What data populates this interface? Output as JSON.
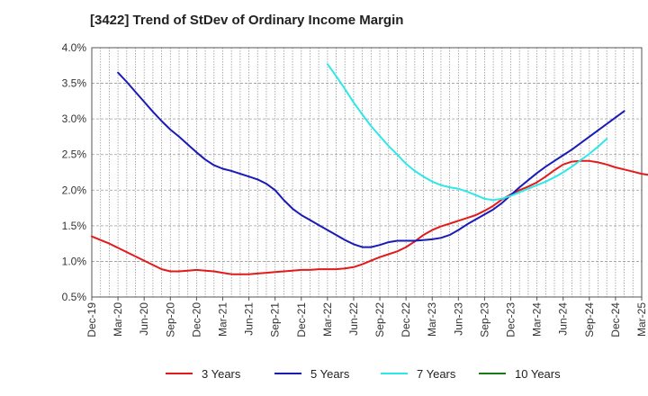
{
  "chart_data": {
    "type": "line",
    "title": "[3422]  Trend of StDev of Ordinary Income Margin",
    "xlabel": "",
    "ylabel": "",
    "x_ticks": [
      "Dec-19",
      "Mar-20",
      "Jun-20",
      "Sep-20",
      "Dec-20",
      "Mar-21",
      "Jun-21",
      "Sep-21",
      "Dec-21",
      "Mar-22",
      "Jun-22",
      "Sep-22",
      "Dec-22",
      "Mar-23",
      "Jun-23",
      "Sep-23",
      "Dec-23",
      "Mar-24",
      "Jun-24",
      "Sep-24",
      "Dec-24",
      "Mar-25"
    ],
    "y_ticks": [
      "0.5%",
      "1.0%",
      "1.5%",
      "2.0%",
      "2.5%",
      "3.0%",
      "3.5%",
      "4.0%"
    ],
    "ylim": [
      0.5,
      4.0
    ],
    "grid": true,
    "legend_position": "bottom",
    "series": [
      {
        "name": "3 Years",
        "color": "#e31a1c",
        "points": [
          [
            "Dec-19",
            1.35
          ],
          [
            "Jan-20",
            1.3
          ],
          [
            "Feb-20",
            1.25
          ],
          [
            "Mar-20",
            1.19
          ],
          [
            "Apr-20",
            1.13
          ],
          [
            "May-20",
            1.07
          ],
          [
            "Jun-20",
            1.01
          ],
          [
            "Jul-20",
            0.95
          ],
          [
            "Aug-20",
            0.89
          ],
          [
            "Sep-20",
            0.86
          ],
          [
            "Oct-20",
            0.86
          ],
          [
            "Nov-20",
            0.87
          ],
          [
            "Dec-20",
            0.88
          ],
          [
            "Jan-21",
            0.87
          ],
          [
            "Feb-21",
            0.86
          ],
          [
            "Mar-21",
            0.84
          ],
          [
            "Apr-21",
            0.82
          ],
          [
            "May-21",
            0.82
          ],
          [
            "Jun-21",
            0.82
          ],
          [
            "Jul-21",
            0.83
          ],
          [
            "Aug-21",
            0.84
          ],
          [
            "Sep-21",
            0.85
          ],
          [
            "Oct-21",
            0.86
          ],
          [
            "Nov-21",
            0.87
          ],
          [
            "Dec-21",
            0.88
          ],
          [
            "Jan-22",
            0.88
          ],
          [
            "Feb-22",
            0.89
          ],
          [
            "Mar-22",
            0.89
          ],
          [
            "Apr-22",
            0.89
          ],
          [
            "May-22",
            0.9
          ],
          [
            "Jun-22",
            0.92
          ],
          [
            "Jul-22",
            0.96
          ],
          [
            "Aug-22",
            1.01
          ],
          [
            "Sep-22",
            1.06
          ],
          [
            "Oct-22",
            1.1
          ],
          [
            "Nov-22",
            1.14
          ],
          [
            "Dec-22",
            1.2
          ],
          [
            "Jan-23",
            1.28
          ],
          [
            "Feb-23",
            1.37
          ],
          [
            "Mar-23",
            1.44
          ],
          [
            "Apr-23",
            1.49
          ],
          [
            "May-23",
            1.53
          ],
          [
            "Jun-23",
            1.57
          ],
          [
            "Jul-23",
            1.61
          ],
          [
            "Aug-23",
            1.65
          ],
          [
            "Sep-23",
            1.71
          ],
          [
            "Oct-23",
            1.78
          ],
          [
            "Nov-23",
            1.87
          ],
          [
            "Dec-23",
            1.94
          ],
          [
            "Jan-24",
            2.0
          ],
          [
            "Feb-24",
            2.05
          ],
          [
            "Mar-24",
            2.11
          ],
          [
            "Apr-24",
            2.19
          ],
          [
            "May-24",
            2.28
          ],
          [
            "Jun-24",
            2.36
          ],
          [
            "Jul-24",
            2.4
          ],
          [
            "Aug-24",
            2.41
          ],
          [
            "Sep-24",
            2.41
          ],
          [
            "Oct-24",
            2.39
          ],
          [
            "Nov-24",
            2.36
          ],
          [
            "Dec-24",
            2.32
          ],
          [
            "Jan-25",
            2.29
          ],
          [
            "Feb-25",
            2.26
          ],
          [
            "Mar-25",
            2.23
          ],
          [
            "Apr-25",
            2.21
          ],
          [
            "May-25",
            2.2
          ],
          [
            "Jun-25",
            2.2
          ]
        ]
      },
      {
        "name": "5 Years",
        "color": "#1a1ab8",
        "points": [
          [
            "Mar-20",
            3.65
          ],
          [
            "Apr-20",
            3.52
          ],
          [
            "May-20",
            3.38
          ],
          [
            "Jun-20",
            3.24
          ],
          [
            "Jul-20",
            3.1
          ],
          [
            "Aug-20",
            2.97
          ],
          [
            "Sep-20",
            2.85
          ],
          [
            "Oct-20",
            2.75
          ],
          [
            "Nov-20",
            2.64
          ],
          [
            "Dec-20",
            2.53
          ],
          [
            "Jan-21",
            2.43
          ],
          [
            "Feb-21",
            2.35
          ],
          [
            "Mar-21",
            2.3
          ],
          [
            "Apr-21",
            2.27
          ],
          [
            "May-21",
            2.23
          ],
          [
            "Jun-21",
            2.19
          ],
          [
            "Jul-21",
            2.15
          ],
          [
            "Aug-21",
            2.09
          ],
          [
            "Sep-21",
            2.0
          ],
          [
            "Oct-21",
            1.86
          ],
          [
            "Nov-21",
            1.74
          ],
          [
            "Dec-21",
            1.65
          ],
          [
            "Jan-22",
            1.58
          ],
          [
            "Feb-22",
            1.51
          ],
          [
            "Mar-22",
            1.44
          ],
          [
            "Apr-22",
            1.37
          ],
          [
            "May-22",
            1.3
          ],
          [
            "Jun-22",
            1.24
          ],
          [
            "Jul-22",
            1.2
          ],
          [
            "Aug-22",
            1.2
          ],
          [
            "Sep-22",
            1.23
          ],
          [
            "Oct-22",
            1.27
          ],
          [
            "Nov-22",
            1.29
          ],
          [
            "Dec-22",
            1.29
          ],
          [
            "Jan-23",
            1.29
          ],
          [
            "Feb-23",
            1.3
          ],
          [
            "Mar-23",
            1.31
          ],
          [
            "Apr-23",
            1.33
          ],
          [
            "May-23",
            1.37
          ],
          [
            "Jun-23",
            1.44
          ],
          [
            "Jul-23",
            1.52
          ],
          [
            "Aug-23",
            1.59
          ],
          [
            "Sep-23",
            1.66
          ],
          [
            "Oct-23",
            1.73
          ],
          [
            "Nov-23",
            1.82
          ],
          [
            "Dec-23",
            1.93
          ],
          [
            "Jan-24",
            2.04
          ],
          [
            "Feb-24",
            2.14
          ],
          [
            "Mar-24",
            2.24
          ],
          [
            "Apr-24",
            2.33
          ],
          [
            "May-24",
            2.41
          ],
          [
            "Jun-24",
            2.49
          ],
          [
            "Jul-24",
            2.57
          ],
          [
            "Aug-24",
            2.66
          ],
          [
            "Sep-24",
            2.75
          ],
          [
            "Oct-24",
            2.84
          ],
          [
            "Nov-24",
            2.93
          ],
          [
            "Dec-24",
            3.02
          ],
          [
            "Jan-25",
            3.11
          ]
        ]
      },
      {
        "name": "7 Years",
        "color": "#2ee8e8",
        "points": [
          [
            "Mar-22",
            3.77
          ],
          [
            "Apr-22",
            3.6
          ],
          [
            "May-22",
            3.42
          ],
          [
            "Jun-22",
            3.23
          ],
          [
            "Jul-22",
            3.06
          ],
          [
            "Aug-22",
            2.9
          ],
          [
            "Sep-22",
            2.76
          ],
          [
            "Oct-22",
            2.62
          ],
          [
            "Nov-22",
            2.5
          ],
          [
            "Dec-22",
            2.37
          ],
          [
            "Jan-23",
            2.27
          ],
          [
            "Feb-23",
            2.19
          ],
          [
            "Mar-23",
            2.12
          ],
          [
            "Apr-23",
            2.07
          ],
          [
            "May-23",
            2.04
          ],
          [
            "Jun-23",
            2.02
          ],
          [
            "Jul-23",
            1.98
          ],
          [
            "Aug-23",
            1.93
          ],
          [
            "Sep-23",
            1.88
          ],
          [
            "Oct-23",
            1.86
          ],
          [
            "Nov-23",
            1.88
          ],
          [
            "Dec-23",
            1.92
          ],
          [
            "Jan-24",
            1.97
          ],
          [
            "Feb-24",
            2.02
          ],
          [
            "Mar-24",
            2.07
          ],
          [
            "Apr-24",
            2.12
          ],
          [
            "May-24",
            2.18
          ],
          [
            "Jun-24",
            2.25
          ],
          [
            "Jul-24",
            2.33
          ],
          [
            "Aug-24",
            2.42
          ],
          [
            "Sep-24",
            2.51
          ],
          [
            "Oct-24",
            2.61
          ],
          [
            "Nov-24",
            2.72
          ]
        ]
      },
      {
        "name": "10 Years",
        "color": "#1a7a1a",
        "points": []
      }
    ]
  }
}
